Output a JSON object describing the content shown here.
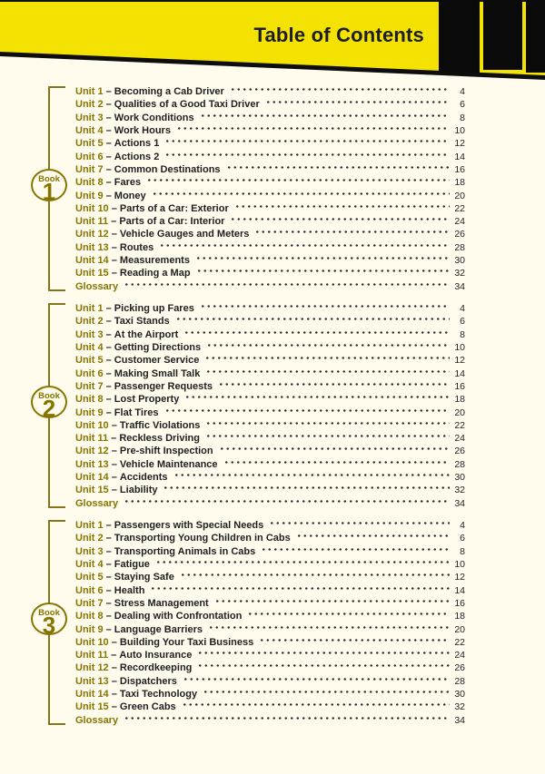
{
  "header": {
    "title": "Table of Contents"
  },
  "colors": {
    "yellow": "#F3E202",
    "cream": "#FFFCEE",
    "olive": "#857500",
    "black": "#0A0A0A"
  },
  "entry_separator": "–",
  "sections": [
    {
      "book_word": "Book",
      "book_number": "1",
      "entries": [
        {
          "label": "Unit 1",
          "title": "Becoming a Cab Driver",
          "page": "4"
        },
        {
          "label": "Unit 2",
          "title": "Qualities of a Good Taxi Driver",
          "page": "6"
        },
        {
          "label": "Unit 3",
          "title": "Work Conditions",
          "page": "8"
        },
        {
          "label": "Unit 4",
          "title": "Work Hours",
          "page": "10"
        },
        {
          "label": "Unit 5",
          "title": "Actions 1",
          "page": "12"
        },
        {
          "label": "Unit 6",
          "title": "Actions 2",
          "page": "14"
        },
        {
          "label": "Unit 7",
          "title": "Common Destinations",
          "page": "16"
        },
        {
          "label": "Unit 8",
          "title": "Fares",
          "page": "18"
        },
        {
          "label": "Unit 9",
          "title": "Money",
          "page": "20"
        },
        {
          "label": "Unit 10",
          "title": "Parts of a Car: Exterior",
          "page": "22"
        },
        {
          "label": "Unit 11",
          "title": "Parts of a Car: Interior",
          "page": "24"
        },
        {
          "label": "Unit 12",
          "title": "Vehicle Gauges and Meters",
          "page": "26"
        },
        {
          "label": "Unit 13",
          "title": "Routes",
          "page": "28"
        },
        {
          "label": "Unit 14",
          "title": "Measurements",
          "page": "30"
        },
        {
          "label": "Unit 15",
          "title": "Reading a Map",
          "page": "32"
        },
        {
          "label": "Glossary",
          "title": null,
          "page": "34"
        }
      ]
    },
    {
      "book_word": "Book",
      "book_number": "2",
      "entries": [
        {
          "label": "Unit 1",
          "title": "Picking up Fares",
          "page": "4"
        },
        {
          "label": "Unit 2",
          "title": "Taxi Stands",
          "page": "6"
        },
        {
          "label": "Unit 3",
          "title": "At the Airport",
          "page": "8"
        },
        {
          "label": "Unit 4",
          "title": "Getting Directions",
          "page": "10"
        },
        {
          "label": "Unit 5",
          "title": "Customer Service",
          "page": "12"
        },
        {
          "label": "Unit 6",
          "title": "Making Small Talk",
          "page": "14"
        },
        {
          "label": "Unit 7",
          "title": "Passenger Requests",
          "page": "16"
        },
        {
          "label": "Unit 8",
          "title": "Lost Property",
          "page": "18"
        },
        {
          "label": "Unit 9",
          "title": "Flat Tires",
          "page": "20"
        },
        {
          "label": "Unit 10",
          "title": "Traffic Violations",
          "page": "22"
        },
        {
          "label": "Unit 11",
          "title": "Reckless Driving",
          "page": "24"
        },
        {
          "label": "Unit 12",
          "title": "Pre-shift Inspection",
          "page": "26"
        },
        {
          "label": "Unit 13",
          "title": "Vehicle Maintenance",
          "page": "28"
        },
        {
          "label": "Unit 14",
          "title": "Accidents",
          "page": "30"
        },
        {
          "label": "Unit 15",
          "title": "Liability",
          "page": "32"
        },
        {
          "label": "Glossary",
          "title": null,
          "page": "34"
        }
      ]
    },
    {
      "book_word": "Book",
      "book_number": "3",
      "entries": [
        {
          "label": "Unit 1",
          "title": "Passengers with Special Needs",
          "page": "4"
        },
        {
          "label": "Unit 2",
          "title": "Transporting Young Children in Cabs",
          "page": "6"
        },
        {
          "label": "Unit 3",
          "title": "Transporting Animals in Cabs",
          "page": "8"
        },
        {
          "label": "Unit 4",
          "title": "Fatigue",
          "page": "10"
        },
        {
          "label": "Unit 5",
          "title": "Staying Safe",
          "page": "12"
        },
        {
          "label": "Unit 6",
          "title": "Health",
          "page": "14"
        },
        {
          "label": "Unit 7",
          "title": "Stress Management",
          "page": "16"
        },
        {
          "label": "Unit 8",
          "title": "Dealing with Confrontation",
          "page": "18"
        },
        {
          "label": "Unit 9",
          "title": "Language Barriers",
          "page": "20"
        },
        {
          "label": "Unit 10",
          "title": "Building Your Taxi Business",
          "page": "22"
        },
        {
          "label": "Unit 11",
          "title": "Auto Insurance",
          "page": "24"
        },
        {
          "label": "Unit 12",
          "title": "Recordkeeping",
          "page": "26"
        },
        {
          "label": "Unit 13",
          "title": "Dispatchers",
          "page": "28"
        },
        {
          "label": "Unit 14",
          "title": "Taxi Technology",
          "page": "30"
        },
        {
          "label": "Unit 15",
          "title": "Green Cabs",
          "page": "32"
        },
        {
          "label": "Glossary",
          "title": null,
          "page": "34"
        }
      ]
    }
  ]
}
